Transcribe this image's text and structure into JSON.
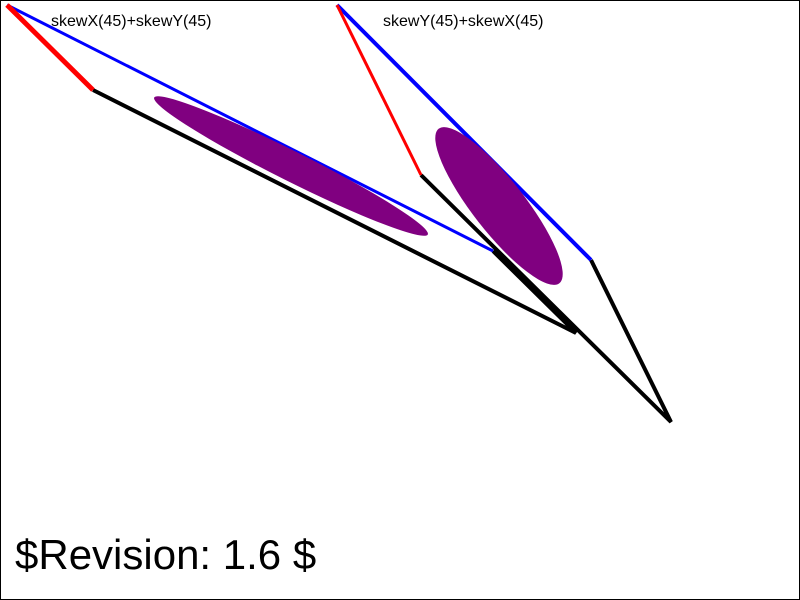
{
  "labels": {
    "left": "skewX(45)+skewY(45)",
    "right": "skewY(45)+skewX(45)"
  },
  "revision": "$Revision: 1.6 $",
  "colors": {
    "x_axis": "#0000ff",
    "y_axis": "#ff0000",
    "outline": "#000000",
    "ellipse": "#800080",
    "background": "#ffffff",
    "border": "#000000"
  }
}
